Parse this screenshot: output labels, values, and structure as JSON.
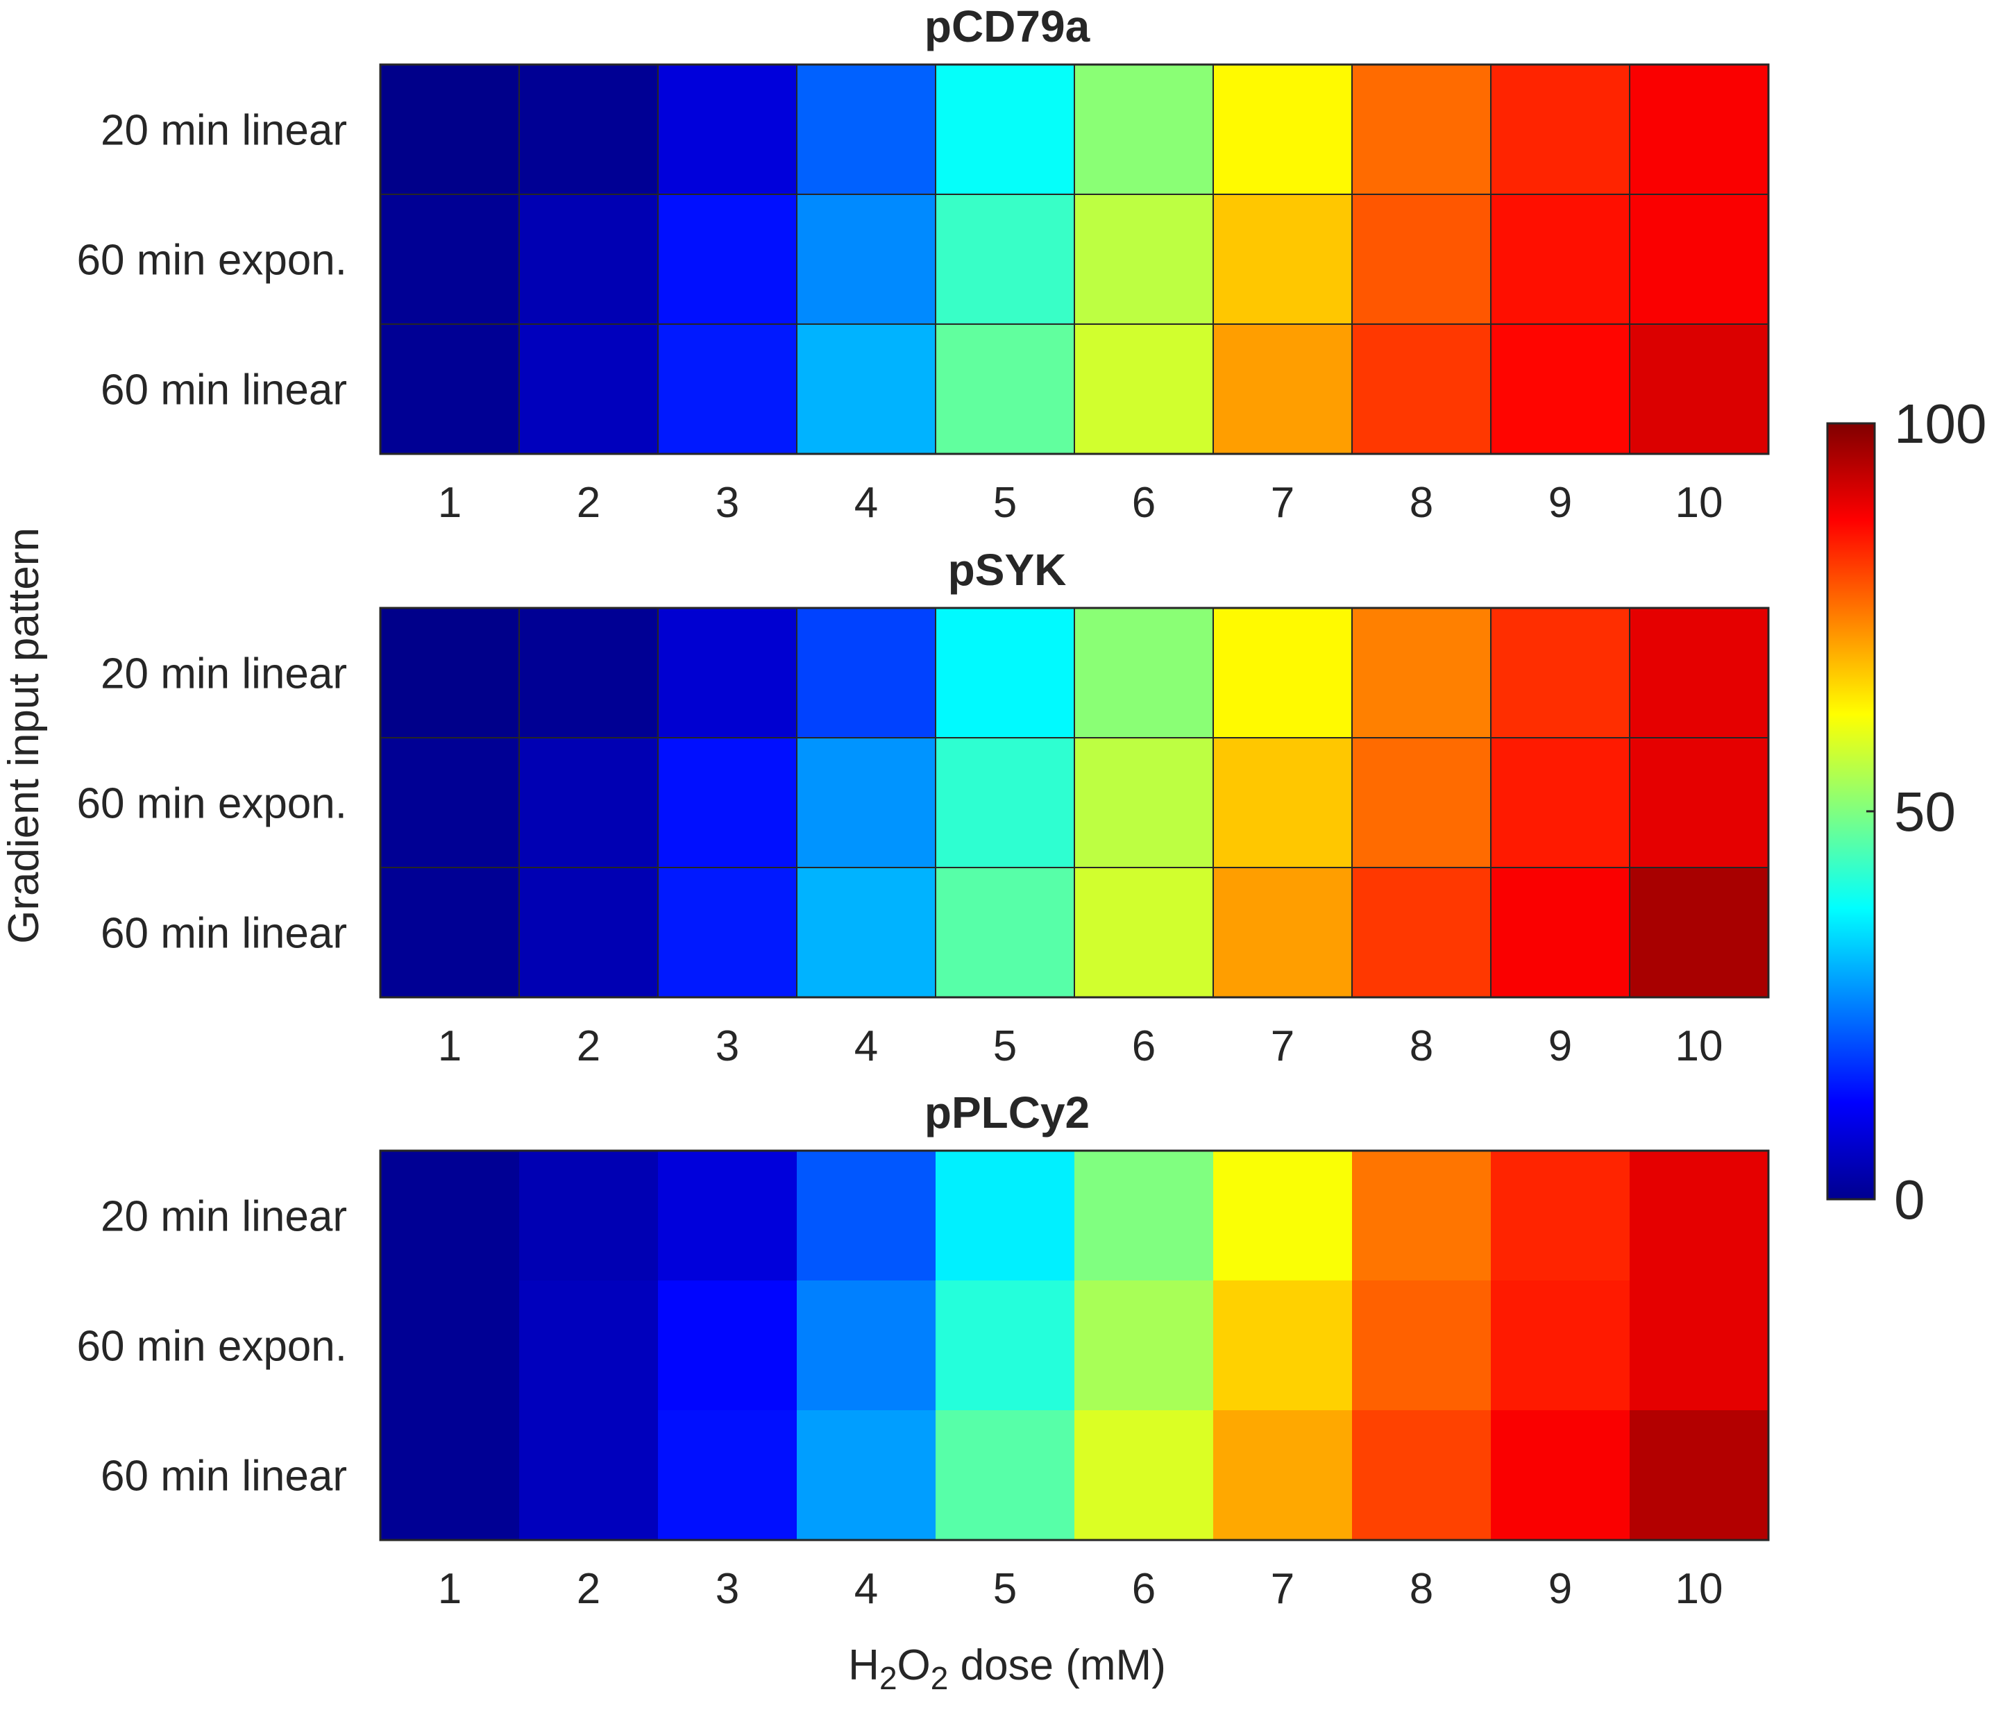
{
  "chart_data": {
    "type": "heatmap",
    "xlabel_parts": {
      "main": "H",
      "sub1": "2",
      "mid": "O",
      "sub2": "2",
      "rest": " dose (mM)"
    },
    "ylabel": "Gradient input pattern",
    "x_categories": [
      "1",
      "2",
      "3",
      "4",
      "5",
      "6",
      "7",
      "8",
      "9",
      "10"
    ],
    "y_categories": [
      "20 min linear",
      "60 min expon.",
      "60 min linear"
    ],
    "colormap": "jet",
    "clim": [
      0,
      100
    ],
    "colorbar_ticks": [
      "0",
      "50",
      "100"
    ],
    "panels": [
      {
        "title": "pCD79a",
        "cell_borders": true,
        "values": [
          [
            1,
            2,
            9,
            22,
            38,
            51,
            63,
            77,
            84,
            88
          ],
          [
            2,
            5,
            14,
            26,
            43,
            56,
            68,
            79,
            86,
            88
          ],
          [
            2,
            6,
            15,
            30,
            47,
            58,
            72,
            82,
            87,
            91
          ]
        ]
      },
      {
        "title": "pSYK",
        "cell_borders": true,
        "values": [
          [
            1,
            2,
            8,
            19,
            37,
            51,
            63,
            75,
            83,
            90
          ],
          [
            2,
            5,
            14,
            27,
            42,
            56,
            68,
            77,
            85,
            90
          ],
          [
            2,
            5,
            15,
            30,
            46,
            58,
            72,
            82,
            88,
            96
          ]
        ]
      },
      {
        "title": "pPLCy2",
        "cell_borders": false,
        "values": [
          [
            2,
            5,
            9,
            21,
            36,
            50,
            62,
            76,
            84,
            90
          ],
          [
            2,
            6,
            13,
            25,
            41,
            54,
            67,
            78,
            85,
            90
          ],
          [
            2,
            6,
            14,
            28,
            46,
            59,
            71,
            81,
            88,
            95
          ]
        ]
      }
    ]
  }
}
